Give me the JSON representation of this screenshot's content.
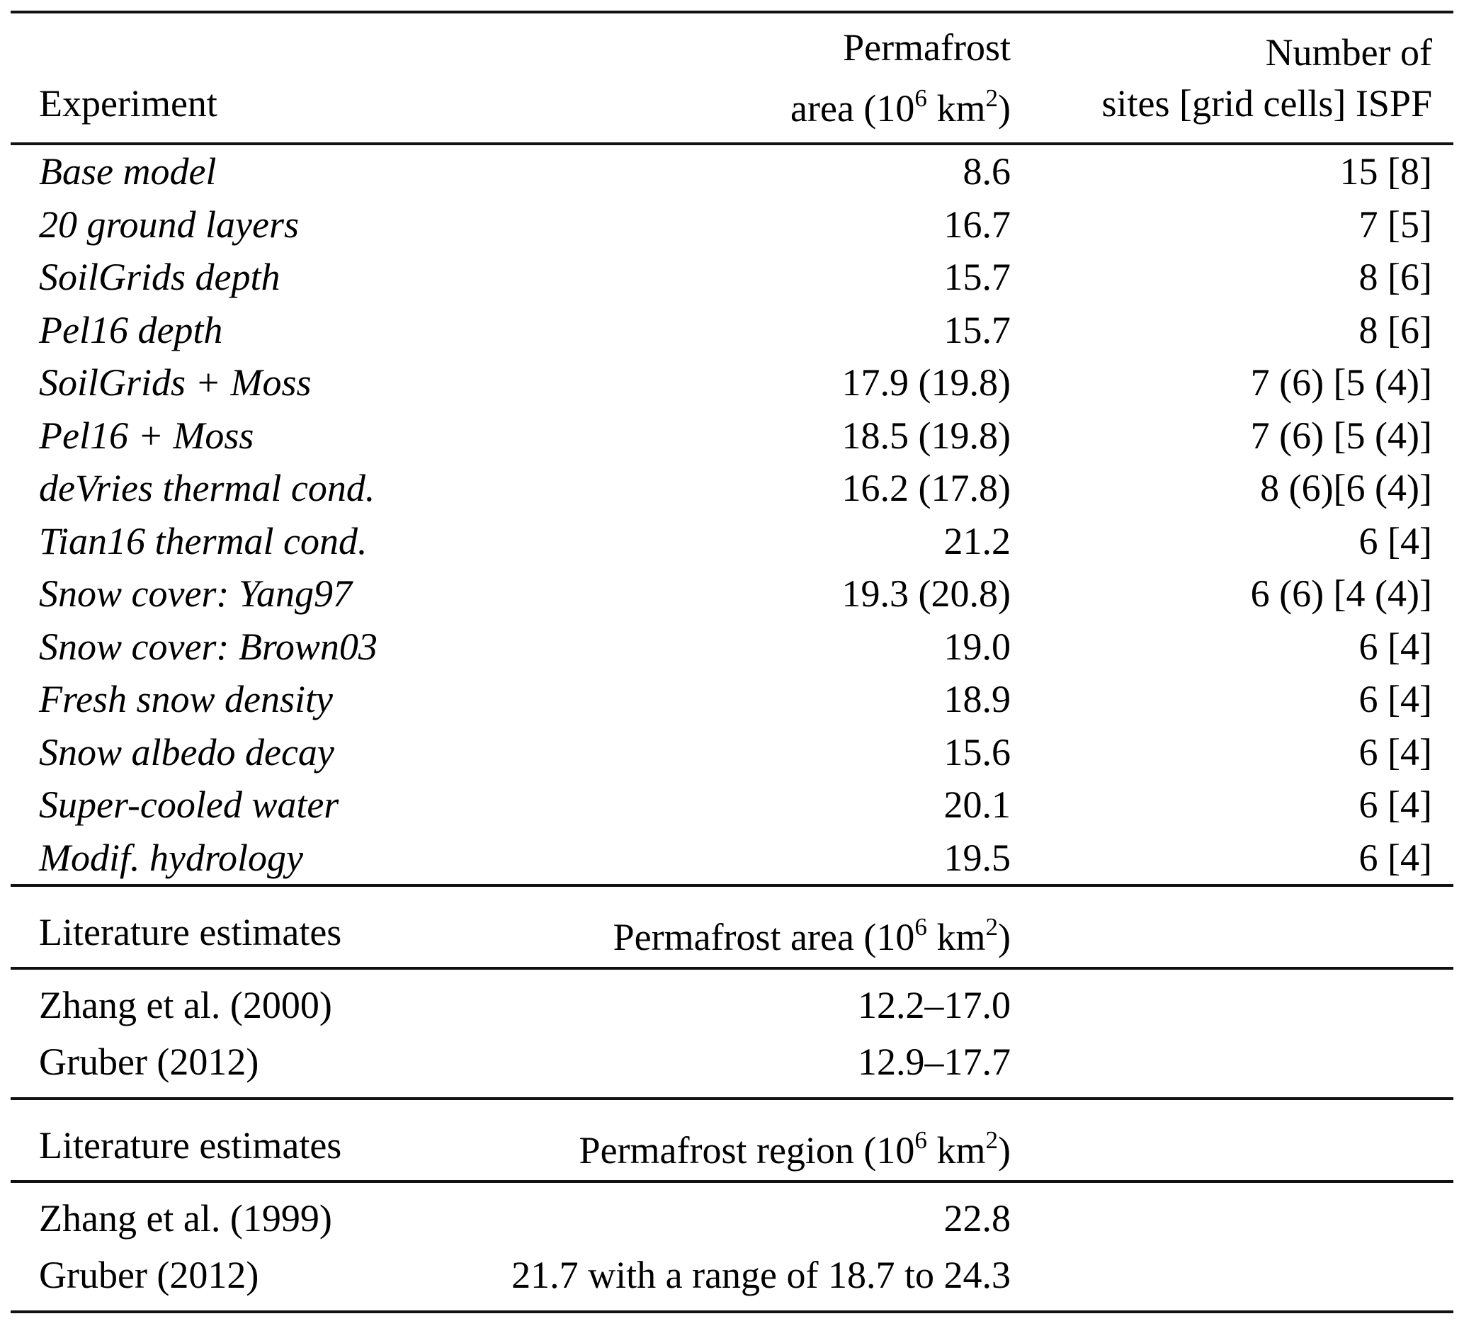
{
  "header": {
    "col1": "Experiment",
    "col2_line1": "Permafrost",
    "col2_line2": {
      "p1": "area (10",
      "sup1": "6",
      "p2": " km",
      "sup2": "2",
      "p3": ")"
    },
    "col3_line1": "Number of",
    "col3_line2": "sites [grid cells] ISPF"
  },
  "experiments": [
    {
      "name": "Base model",
      "area": "8.6",
      "sites": "15 [8]"
    },
    {
      "name": "20 ground layers",
      "area": "16.7",
      "sites": "7 [5]"
    },
    {
      "name": "SoilGrids depth",
      "area": "15.7",
      "sites": "8 [6]"
    },
    {
      "name": "Pel16 depth",
      "area": "15.7",
      "sites": "8 [6]"
    },
    {
      "name": "SoilGrids + Moss",
      "area": "17.9 (19.8)",
      "sites": "7 (6) [5 (4)]"
    },
    {
      "name": "Pel16 + Moss",
      "area": "18.5 (19.8)",
      "sites": "7 (6) [5 (4)]"
    },
    {
      "name": "deVries thermal cond.",
      "area": "16.2 (17.8)",
      "sites": "8 (6)[6 (4)]"
    },
    {
      "name": "Tian16 thermal cond.",
      "area": "21.2",
      "sites": "6 [4]"
    },
    {
      "name": "Snow cover: Yang97",
      "area": "19.3 (20.8)",
      "sites": "6 (6) [4 (4)]"
    },
    {
      "name": "Snow cover: Brown03",
      "area": "19.0",
      "sites": "6 [4]"
    },
    {
      "name": "Fresh snow density",
      "area": "18.9",
      "sites": "6 [4]"
    },
    {
      "name": "Snow albedo decay",
      "area": "15.6",
      "sites": "6 [4]"
    },
    {
      "name": "Super-cooled water",
      "area": "20.1",
      "sites": "6 [4]"
    },
    {
      "name": "Modif. hydrology",
      "area": "19.5",
      "sites": "6 [4]"
    }
  ],
  "sections": [
    {
      "label": "Literature estimates",
      "header": {
        "p1": "Permafrost area (10",
        "sup1": "6",
        "p2": " km",
        "sup2": "2",
        "p3": ")"
      },
      "rows": [
        {
          "name": "Zhang et al. (2000)",
          "value": "12.2–17.0"
        },
        {
          "name": "Gruber (2012)",
          "value": "12.9–17.7"
        }
      ]
    },
    {
      "label": "Literature estimates",
      "header": {
        "p1": "Permafrost region (10",
        "sup1": "6",
        "p2": " km",
        "sup2": "2",
        "p3": ")"
      },
      "rows": [
        {
          "name": "Zhang et al. (1999)",
          "value": "22.8"
        },
        {
          "name": "Gruber (2012)",
          "value": "21.7 with a range of 18.7 to 24.3"
        }
      ]
    }
  ]
}
